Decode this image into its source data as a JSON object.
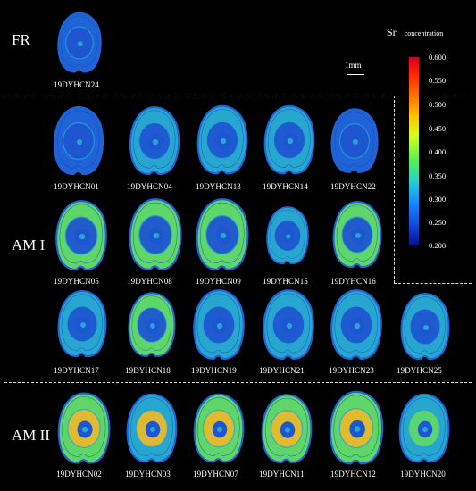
{
  "groups": [
    {
      "label": "FR"
    },
    {
      "label": "AM I"
    },
    {
      "label": "AM II"
    }
  ],
  "colorbar": {
    "symbol": "Sr",
    "title": "concentration",
    "ticks": [
      "0.600",
      "0.550",
      "0.500",
      "0.450",
      "0.400",
      "0.350",
      "0.300",
      "0.250",
      "0.200"
    ],
    "min": 0.2,
    "max": 0.6
  },
  "scale_bar": {
    "label": "1mm"
  },
  "samples": [
    {
      "id": "19DYHCN24",
      "group": "FR",
      "ring": "blue",
      "core": "blue"
    },
    {
      "id": "19DYHCN01",
      "group": "AM I",
      "ring": "blue",
      "core": "blue"
    },
    {
      "id": "19DYHCN04",
      "group": "AM I",
      "ring": "cyan",
      "core": "blue"
    },
    {
      "id": "19DYHCN13",
      "group": "AM I",
      "ring": "cyan",
      "core": "blue"
    },
    {
      "id": "19DYHCN14",
      "group": "AM I",
      "ring": "cyan",
      "core": "blue"
    },
    {
      "id": "19DYHCN22",
      "group": "AM I",
      "ring": "blue",
      "core": "blue"
    },
    {
      "id": "19DYHCN05",
      "group": "AM I",
      "ring": "green",
      "core": "blue"
    },
    {
      "id": "19DYHCN08",
      "group": "AM I",
      "ring": "green",
      "core": "blue"
    },
    {
      "id": "19DYHCN09",
      "group": "AM I",
      "ring": "green",
      "core": "blue"
    },
    {
      "id": "19DYHCN15",
      "group": "AM I",
      "ring": "cyan",
      "core": "blue"
    },
    {
      "id": "19DYHCN16",
      "group": "AM I",
      "ring": "green",
      "core": "blue"
    },
    {
      "id": "19DYHCN17",
      "group": "AM I",
      "ring": "cyan",
      "core": "blue"
    },
    {
      "id": "19DYHCN18",
      "group": "AM I",
      "ring": "green",
      "core": "blue"
    },
    {
      "id": "19DYHCN19",
      "group": "AM I",
      "ring": "cyan",
      "core": "blue"
    },
    {
      "id": "19DYHCN21",
      "group": "AM I",
      "ring": "cyan",
      "core": "blue"
    },
    {
      "id": "19DYHCN23",
      "group": "AM I",
      "ring": "cyan",
      "core": "blue"
    },
    {
      "id": "19DYHCN25",
      "group": "AM I",
      "ring": "cyan",
      "core": "blue"
    },
    {
      "id": "19DYHCN02",
      "group": "AM II",
      "ring": "green",
      "core": "yellow"
    },
    {
      "id": "19DYHCN03",
      "group": "AM II",
      "ring": "cyan",
      "core": "yellow"
    },
    {
      "id": "19DYHCN07",
      "group": "AM II",
      "ring": "green",
      "core": "yellow"
    },
    {
      "id": "19DYHCN11",
      "group": "AM II",
      "ring": "green",
      "core": "yellow"
    },
    {
      "id": "19DYHCN12",
      "group": "AM II",
      "ring": "green",
      "core": "yellow"
    },
    {
      "id": "19DYHCN20",
      "group": "AM II",
      "ring": "cyan",
      "core": "green"
    }
  ],
  "colors": {
    "blue": "#1f63d6",
    "cyan": "#27a6cf",
    "green": "#5fd66a",
    "yellow": "#e8b92c",
    "core_blue": "#1e55d0",
    "deep_blue": "#123fb5"
  }
}
